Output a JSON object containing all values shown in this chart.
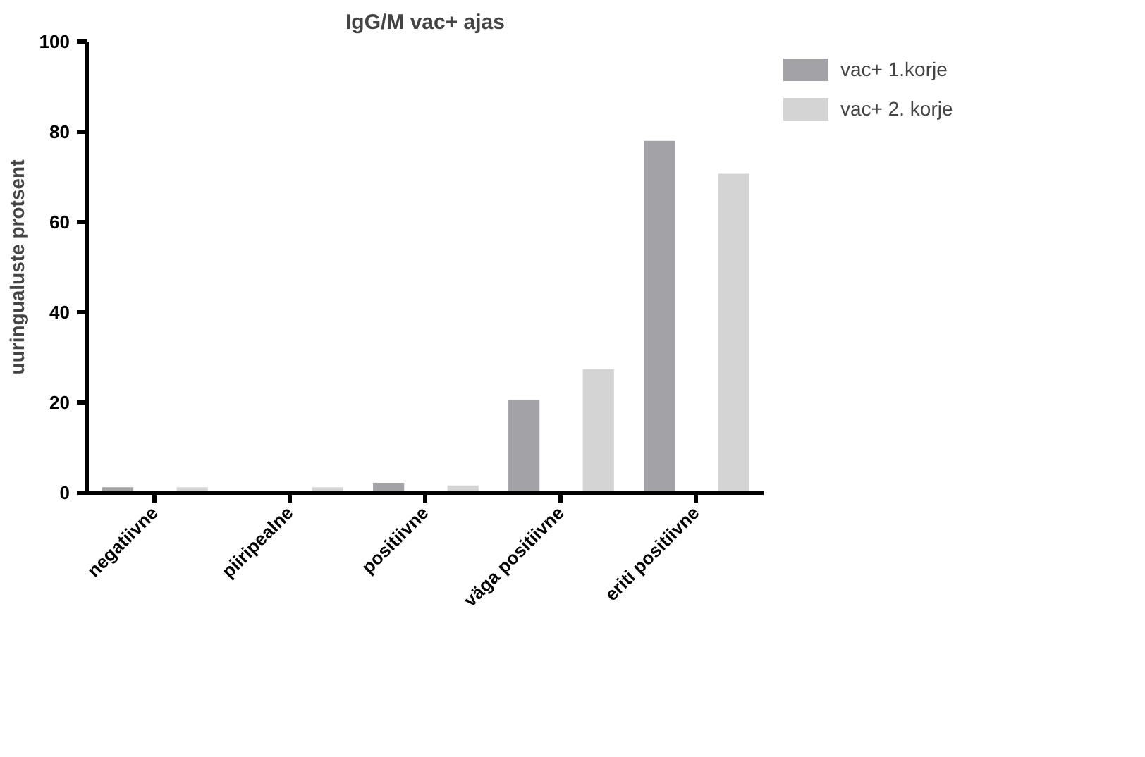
{
  "chart_data": {
    "type": "bar",
    "title": "IgG/M vac+ ajas",
    "ylabel": "uuringualuste protsent",
    "categories": [
      "negatiivne",
      "piiripealne",
      "positiivne",
      "väga positiivne",
      "eriti positiivne"
    ],
    "series": [
      {
        "name": "vac+ 1.korje",
        "color": "#a3a2a7",
        "values": [
          1.2,
          0,
          2.2,
          20.5,
          78.0
        ]
      },
      {
        "name": "vac+ 2. korje",
        "color": "#d4d4d4",
        "values": [
          1.2,
          1.2,
          1.6,
          27.4,
          70.7
        ]
      }
    ],
    "ylim": [
      0,
      100
    ],
    "yticks": [
      0,
      20,
      40,
      60,
      80,
      100
    ],
    "grid": false,
    "legend": "right"
  }
}
